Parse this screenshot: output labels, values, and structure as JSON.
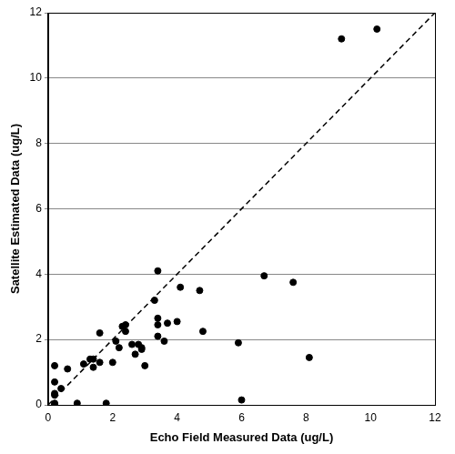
{
  "chart_data": {
    "type": "scatter",
    "x_label": "Echo Field Measured Data (ug/L)",
    "y_label": "Satellite Estimated Data (ug/L)",
    "series": [
      {
        "type": "scatter",
        "color": "#000000",
        "marker": "circle",
        "x": [
          0.2,
          0.2,
          0.2,
          0.2,
          0.2,
          0.2,
          0.4,
          0.6,
          0.9,
          1.1,
          1.3,
          1.4,
          1.4,
          1.6,
          1.6,
          1.8,
          2.0,
          2.1,
          2.2,
          2.3,
          2.4,
          2.4,
          2.6,
          2.7,
          2.8,
          2.9,
          2.9,
          3.0,
          3.3,
          3.4,
          3.4,
          3.4,
          3.4,
          3.6,
          3.7,
          4.0,
          4.1,
          4.7,
          4.8,
          5.9,
          6.0,
          6.7,
          7.6,
          8.1,
          9.1,
          10.2
        ],
        "values": [
          0.0,
          0.05,
          0.3,
          0.35,
          0.7,
          1.2,
          0.5,
          1.1,
          0.05,
          1.25,
          1.4,
          1.15,
          1.4,
          1.3,
          2.2,
          0.05,
          1.3,
          1.95,
          1.75,
          2.4,
          2.45,
          2.25,
          1.85,
          1.55,
          1.85,
          1.7,
          1.75,
          1.2,
          3.2,
          4.1,
          2.65,
          2.45,
          2.1,
          1.95,
          2.5,
          2.55,
          3.6,
          3.5,
          2.25,
          1.9,
          0.15,
          3.95,
          3.75,
          1.45,
          11.2,
          11.5
        ]
      },
      {
        "type": "line",
        "color": "#000000",
        "line_style": "dashed",
        "marker": "none",
        "x": [
          0,
          12
        ],
        "values": [
          0,
          12
        ]
      }
    ],
    "xlim": [
      0,
      12
    ],
    "ylim": [
      0,
      12
    ],
    "xticks": [
      0,
      2,
      4,
      6,
      8,
      10,
      12
    ],
    "yticks": [
      0,
      2,
      4,
      6,
      8,
      10,
      12
    ],
    "grid": "y",
    "legend": false
  }
}
